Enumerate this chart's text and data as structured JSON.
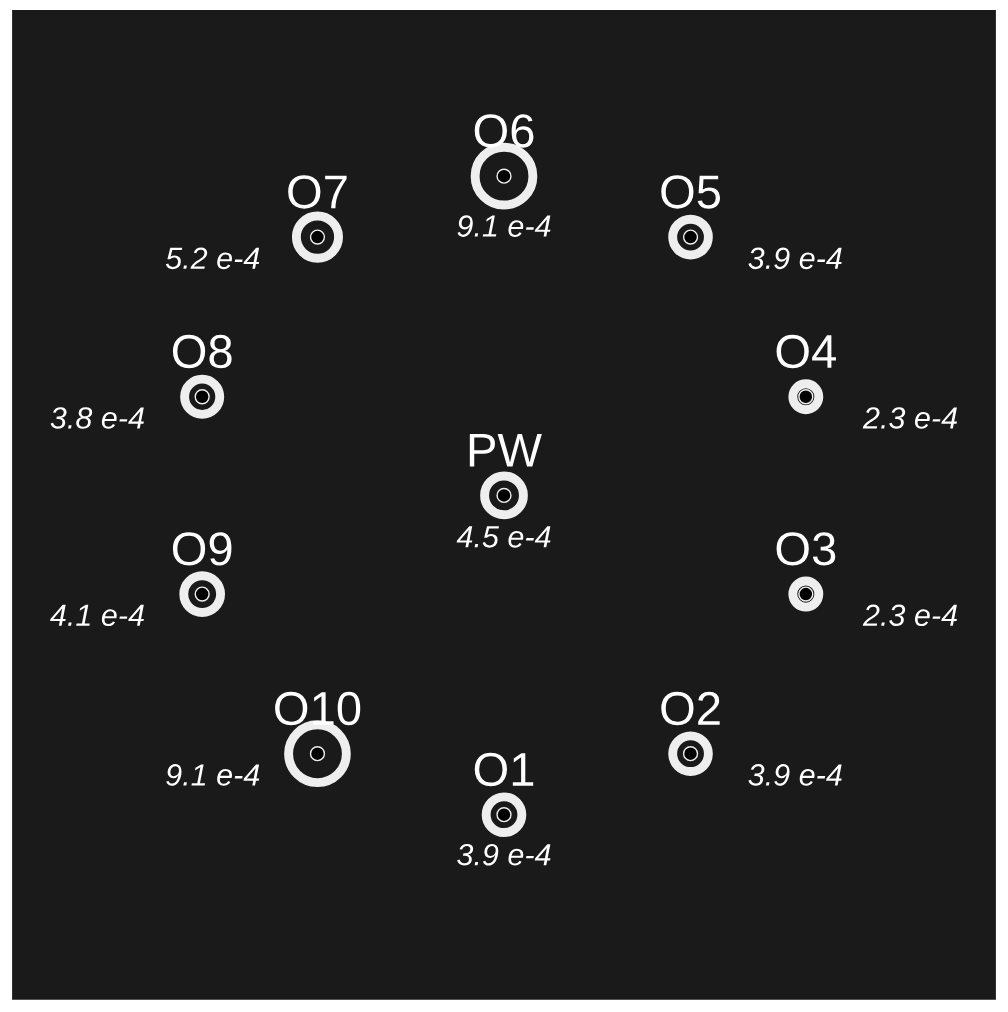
{
  "chart_data": {
    "type": "other",
    "categories": [
      "PW",
      "O1",
      "O2",
      "O3",
      "O4",
      "O5",
      "O6",
      "O7",
      "O8",
      "O9",
      "O10"
    ],
    "values": [
      4.5,
      3.9,
      3.9,
      2.3,
      2.3,
      3.9,
      9.1,
      5.2,
      3.8,
      4.1,
      9.1
    ],
    "value_labels": [
      "4.5 e-4",
      "3.9 e-4",
      "3.9 e-4",
      "2.3 e-4",
      "2.3 e-4",
      "3.9 e-4",
      "9.1 e-4",
      "5.2 e-4",
      "3.8 e-4",
      "4.1 e-4",
      "9.1 e-4"
    ],
    "color": "#eeeeee"
  }
}
